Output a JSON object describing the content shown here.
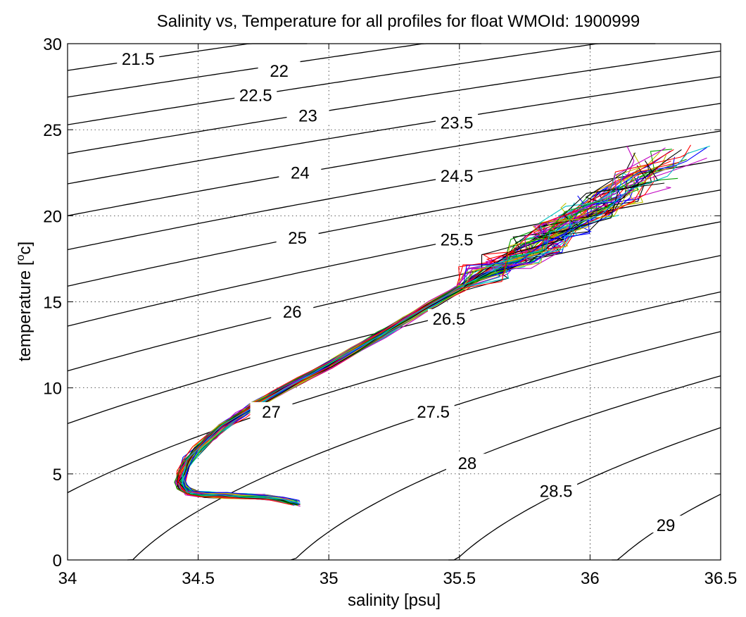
{
  "chart_data": {
    "type": "line",
    "title": "Salinity vs, Temperature for all profiles for float WMOId: 1900999",
    "xlabel": "salinity [psu]",
    "ylabel_text": "temperature [",
    "ylabel_sup": "o",
    "ylabel_end": "c]",
    "xlim": [
      34,
      36.5
    ],
    "ylim": [
      0,
      30
    ],
    "xticks": [
      34,
      34.5,
      35,
      35.5,
      36,
      36.5
    ],
    "xtick_labels": [
      "34",
      "34.5",
      "35",
      "35.5",
      "36",
      "36.5"
    ],
    "yticks": [
      0,
      5,
      10,
      15,
      20,
      25,
      30
    ],
    "ytick_labels": [
      "0",
      "5",
      "10",
      "15",
      "20",
      "25",
      "30"
    ],
    "grid": "dotted",
    "density_contours": [
      {
        "level": "21.5",
        "label_at": [
          34.27,
          29.1
        ]
      },
      {
        "level": "22",
        "label_at": [
          34.81,
          28.4
        ]
      },
      {
        "level": "22.5",
        "label_at": [
          34.72,
          27.0
        ]
      },
      {
        "level": "23",
        "label_at": [
          34.92,
          25.8
        ]
      },
      {
        "level": "23.5",
        "label_at": [
          35.49,
          25.4
        ]
      },
      {
        "level": "24",
        "label_at": [
          34.89,
          22.5
        ]
      },
      {
        "level": "24.5",
        "label_at": [
          35.49,
          22.3
        ]
      },
      {
        "level": "25",
        "label_at": [
          34.88,
          18.7
        ]
      },
      {
        "level": "25.5",
        "label_at": [
          35.49,
          18.6
        ]
      },
      {
        "level": "26",
        "label_at": [
          34.86,
          14.4
        ]
      },
      {
        "level": "26.5",
        "label_at": [
          35.46,
          14.0
        ]
      },
      {
        "level": "27",
        "label_at": [
          34.78,
          8.6
        ]
      },
      {
        "level": "27.5",
        "label_at": [
          35.4,
          8.6
        ]
      },
      {
        "level": "28",
        "label_at": [
          35.53,
          5.6
        ]
      },
      {
        "level": "28.5",
        "label_at": [
          35.87,
          4.0
        ]
      },
      {
        "level": "29",
        "label_at": [
          36.29,
          2.0
        ]
      }
    ],
    "profiles_count": 60,
    "profile_colors": [
      "#0000ff",
      "#00a000",
      "#ff0000",
      "#00c0c0",
      "#c000c0",
      "#c0c000",
      "#000000"
    ],
    "mean_profile": [
      [
        34.87,
        3.3
      ],
      [
        34.82,
        3.5
      ],
      [
        34.76,
        3.65
      ],
      [
        34.68,
        3.7
      ],
      [
        34.6,
        3.75
      ],
      [
        34.52,
        3.8
      ],
      [
        34.47,
        3.9
      ],
      [
        34.44,
        4.2
      ],
      [
        34.43,
        4.6
      ],
      [
        34.44,
        5.1
      ],
      [
        34.46,
        5.8
      ],
      [
        34.5,
        6.5
      ],
      [
        34.55,
        7.2
      ],
      [
        34.6,
        7.8
      ],
      [
        34.66,
        8.4
      ],
      [
        34.72,
        9.0
      ],
      [
        34.8,
        9.7
      ],
      [
        34.9,
        10.5
      ],
      [
        35.0,
        11.3
      ],
      [
        35.1,
        12.2
      ],
      [
        35.2,
        13.1
      ],
      [
        35.3,
        14.0
      ],
      [
        35.4,
        14.9
      ],
      [
        35.5,
        15.8
      ],
      [
        35.6,
        16.7
      ],
      [
        35.7,
        17.5
      ],
      [
        35.8,
        18.3
      ],
      [
        35.9,
        19.2
      ],
      [
        36.0,
        20.2
      ],
      [
        36.1,
        21.2
      ],
      [
        36.2,
        22.2
      ],
      [
        36.28,
        23.2
      ]
    ]
  }
}
